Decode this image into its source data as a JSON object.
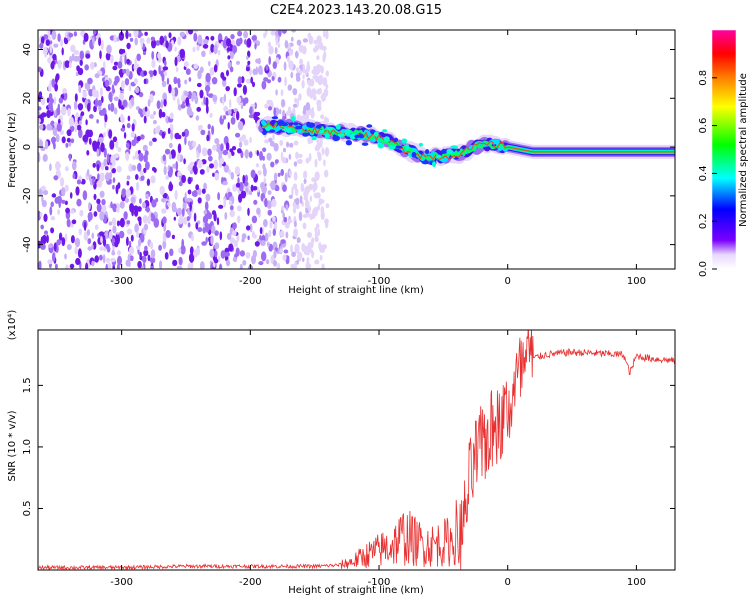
{
  "figure_title": "C2E4.2023.143.20.08.G15",
  "chart_data": [
    {
      "type": "heatmap",
      "title": "",
      "xlabel": "Height of straight line (km)",
      "ylabel": "Frequency (Hz)",
      "xlim": [
        -365,
        130
      ],
      "ylim": [
        -50,
        48
      ],
      "xticks": [
        -300,
        -200,
        -100,
        0,
        100
      ],
      "yticks": [
        -40,
        -20,
        0,
        20,
        40
      ],
      "colorbar": {
        "label": "Normalized spectral amplitude",
        "range": [
          0,
          1
        ],
        "ticks": [
          "0.0",
          "0.2",
          "0.4",
          "0.6",
          "0.8"
        ],
        "colors": [
          "#ffffff",
          "#e8d8ff",
          "#7a00ff",
          "#0000ff",
          "#00ffff",
          "#00ff00",
          "#ffff00",
          "#ff8000",
          "#ff0000",
          "#ff00a0"
        ]
      },
      "signal_track": {
        "x": [
          -190,
          -170,
          -150,
          -130,
          -110,
          -95,
          -80,
          -70,
          -60,
          -50,
          -40,
          -30,
          -20,
          -10,
          0,
          20,
          60,
          100,
          130
        ],
        "freq": [
          9,
          8,
          7,
          6,
          5,
          3,
          -1,
          -3,
          -4,
          -4,
          -3,
          -1,
          1,
          1,
          0,
          -2,
          -2,
          -2,
          -2
        ]
      },
      "noise_region_x": [
        -365,
        -140
      ]
    },
    {
      "type": "line",
      "title": "",
      "xlabel": "Height of straight line (km)",
      "ylabel": "SNR (10 * v/v)",
      "ylabel_multiplier": "(x10⁴)",
      "xlim": [
        -365,
        130
      ],
      "ylim": [
        0,
        1.95
      ],
      "xticks": [
        -300,
        -200,
        -100,
        0,
        100
      ],
      "yticks": [
        "0.5",
        "1.0",
        "1.5"
      ],
      "series": [
        {
          "color": "#e83030",
          "x": [
            -365,
            -300,
            -250,
            -200,
            -150,
            -130,
            -120,
            -110,
            -100,
            -90,
            -80,
            -70,
            -60,
            -50,
            -40,
            -35,
            -30,
            -25,
            -20,
            -15,
            -10,
            -5,
            0,
            5,
            10,
            20,
            30,
            50,
            70,
            90,
            95,
            100,
            110,
            130
          ],
          "y": [
            0.02,
            0.02,
            0.03,
            0.03,
            0.03,
            0.04,
            0.07,
            0.12,
            0.16,
            0.2,
            0.28,
            0.22,
            0.2,
            0.22,
            0.25,
            0.3,
            0.7,
            0.9,
            1.0,
            1.1,
            1.15,
            1.2,
            1.3,
            1.45,
            1.6,
            1.72,
            1.75,
            1.77,
            1.76,
            1.75,
            1.6,
            1.74,
            1.72,
            1.7
          ]
        }
      ]
    }
  ]
}
